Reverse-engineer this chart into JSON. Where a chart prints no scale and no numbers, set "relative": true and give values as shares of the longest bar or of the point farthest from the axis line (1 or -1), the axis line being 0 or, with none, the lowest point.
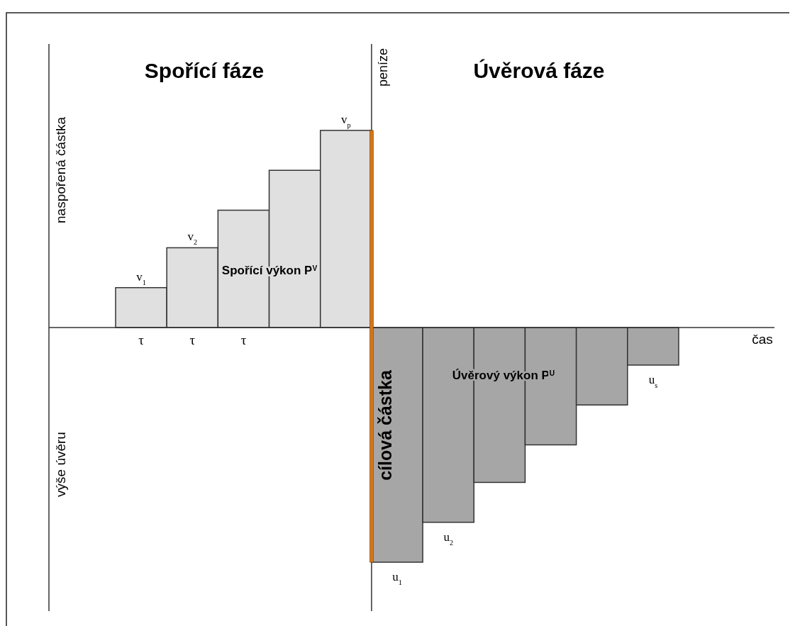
{
  "chart_data": {
    "type": "bar",
    "relative": true,
    "categories": [
      "τ",
      "τ",
      "τ",
      null,
      null,
      null,
      null,
      null,
      null,
      null,
      null
    ],
    "values": [
      0.17,
      0.34,
      0.5,
      0.67,
      0.84,
      -1,
      -0.83,
      -0.66,
      -0.5,
      -0.33,
      -0.16
    ],
    "colors": [
      "#e0e0e0",
      "#e0e0e0",
      "#e0e0e0",
      "#e0e0e0",
      "#e0e0e0",
      "#a6a6a6",
      "#a6a6a6",
      "#a6a6a6",
      "#a6a6a6",
      "#a6a6a6",
      "#a6a6a6"
    ],
    "ylabel": "peníze",
    "annotations": [
      "Spořící fáze",
      "Úvěrová fáze",
      "Spořící výkon P$^{V}$",
      "Úvěrový výkon P$^{U}$",
      "cílová částka",
      "naspořená částka",
      "výše úvěru",
      "v$_{1}$",
      "v$_{2}$",
      "v$_{p}$",
      "u$_{1}$",
      "u$_{2}$",
      "u$_{s}$",
      "čas"
    ]
  }
}
